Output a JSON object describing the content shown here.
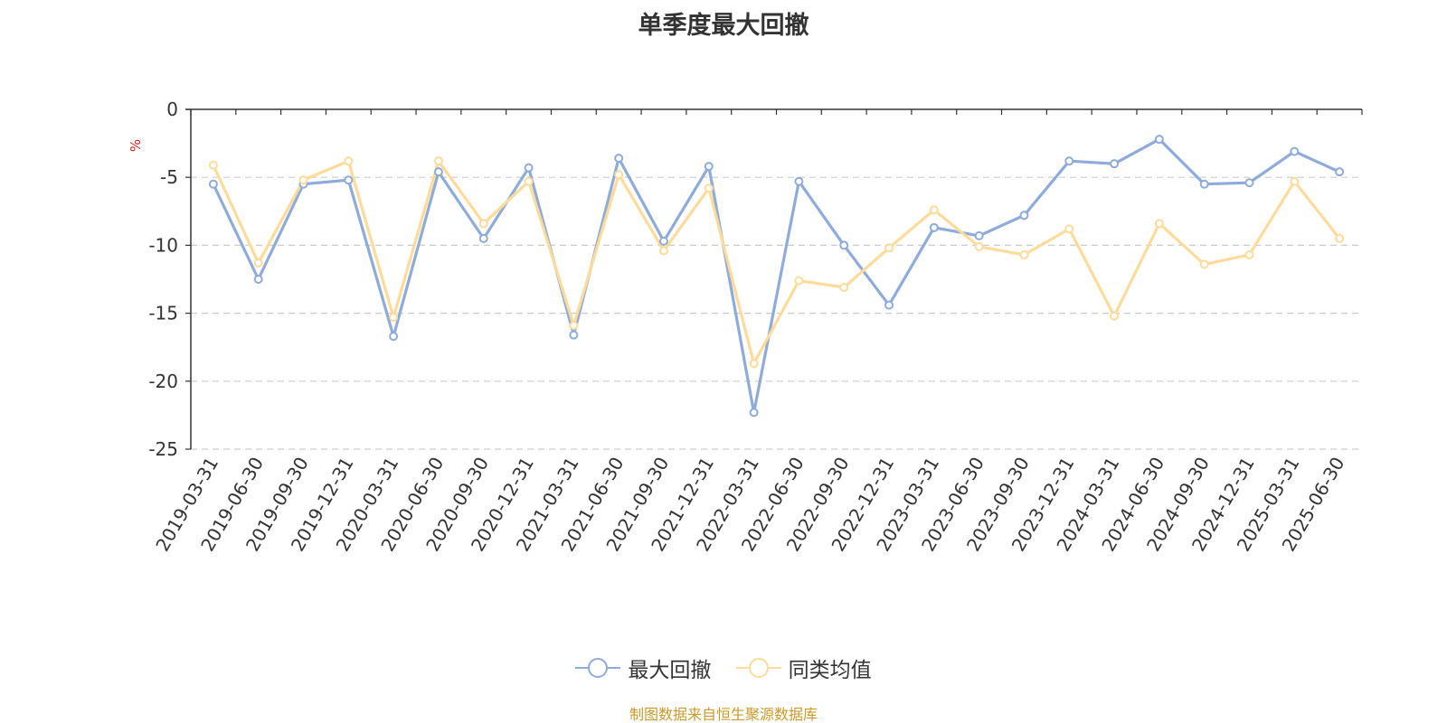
{
  "chart_data": {
    "type": "line",
    "title": "单季度最大回撤",
    "ylabel": "%",
    "ylim": [
      -25,
      0
    ],
    "yticks": [
      0,
      -5,
      -10,
      -15,
      -20,
      -25
    ],
    "grid": true,
    "legend_position": "bottom",
    "categories": [
      "2019-03-31",
      "2019-06-30",
      "2019-09-30",
      "2019-12-31",
      "2020-03-31",
      "2020-06-30",
      "2020-09-30",
      "2020-12-31",
      "2021-03-31",
      "2021-06-30",
      "2021-09-30",
      "2021-12-31",
      "2022-03-31",
      "2022-06-30",
      "2022-09-30",
      "2022-12-31",
      "2023-03-31",
      "2023-06-30",
      "2023-09-30",
      "2023-12-31",
      "2024-03-31",
      "2024-06-30",
      "2024-09-30",
      "2024-12-31",
      "2025-03-31",
      "2025-06-30"
    ],
    "series": [
      {
        "name": "最大回撤",
        "color": "#8eabd9",
        "values": [
          -5.5,
          -12.5,
          -5.5,
          -5.2,
          -16.7,
          -4.6,
          -9.5,
          -4.3,
          -16.6,
          -3.6,
          -9.7,
          -4.2,
          -22.3,
          -5.3,
          -10.0,
          -14.4,
          -8.7,
          -9.3,
          -7.8,
          -3.8,
          -4.0,
          -2.2,
          -5.5,
          -5.4,
          -3.1,
          -4.6
        ]
      },
      {
        "name": "同类均值",
        "color": "#fddb9b",
        "values": [
          -4.1,
          -11.3,
          -5.2,
          -3.8,
          -15.3,
          -3.8,
          -8.4,
          -5.3,
          -15.9,
          -4.8,
          -10.4,
          -5.8,
          -18.7,
          -12.6,
          -13.1,
          -10.2,
          -7.4,
          -10.1,
          -10.7,
          -8.8,
          -15.2,
          -8.4,
          -11.4,
          -10.7,
          -5.3,
          -9.5
        ]
      }
    ],
    "source": "制图数据来自恒生聚源数据库",
    "source_color": "#c79a2c",
    "ylabel_color": "#e02020"
  }
}
